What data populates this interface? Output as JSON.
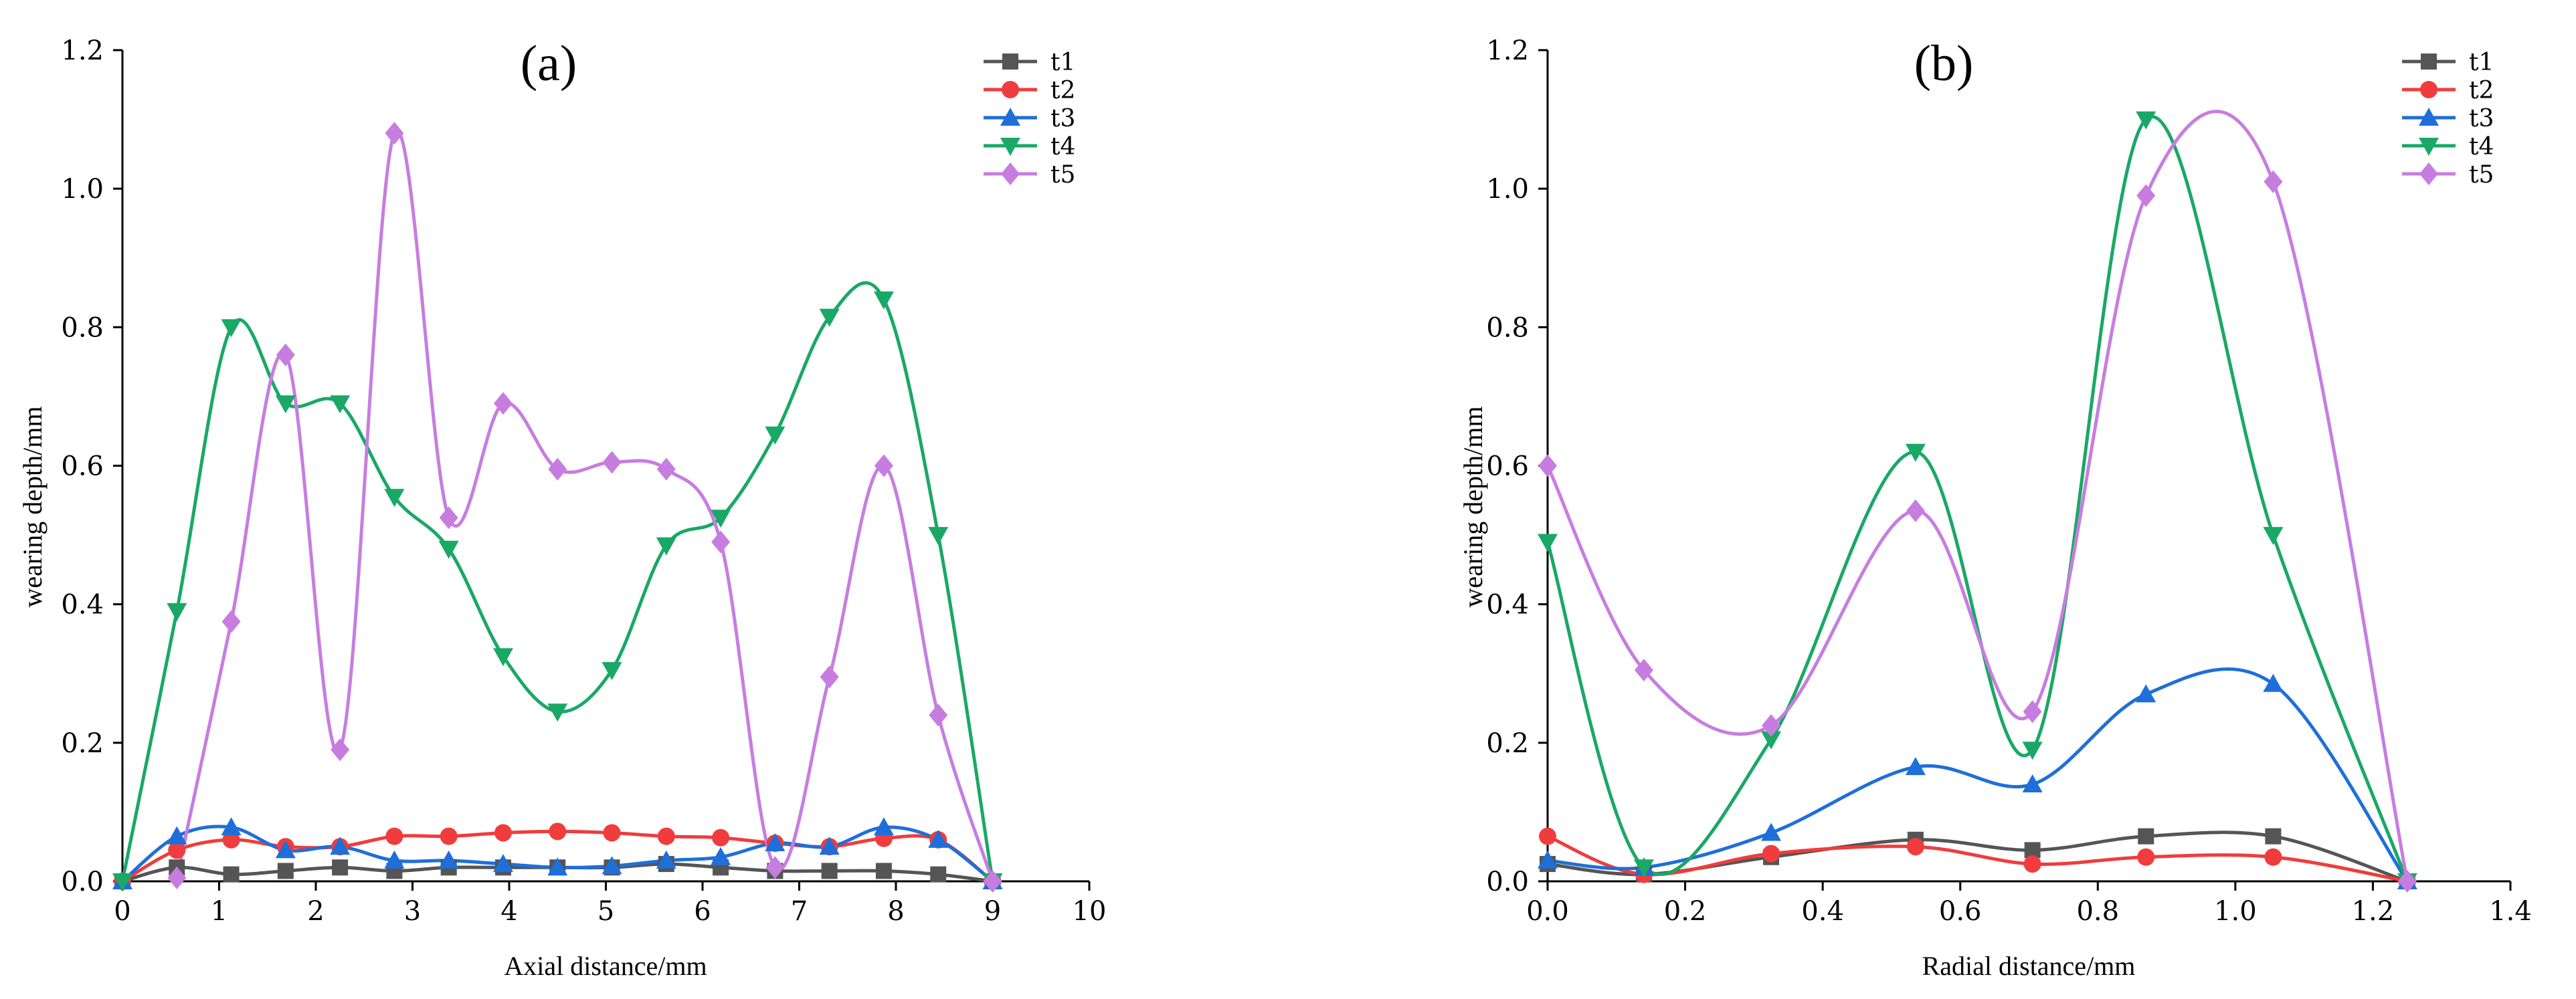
{
  "chart_data": [
    {
      "type": "line",
      "title": "(a)",
      "xlabel": "Axial distance/mm",
      "ylabel": "wearing depth/mm",
      "xlim": [
        0,
        10
      ],
      "ylim": [
        0,
        1.2
      ],
      "xticks": [
        "0",
        "1",
        "2",
        "3",
        "4",
        "5",
        "6",
        "7",
        "8",
        "9",
        "10"
      ],
      "yticks": [
        "0.0",
        "0.2",
        "0.4",
        "0.6",
        "0.8",
        "1.0",
        "1.2"
      ],
      "legend_position": "top-right",
      "series": [
        {
          "name": "t1",
          "color": "#555555",
          "marker": "square",
          "x": [
            0,
            0.5625,
            1.125,
            1.6875,
            2.25,
            2.8125,
            3.375,
            3.9375,
            4.5,
            5.0625,
            5.625,
            6.1875,
            6.75,
            7.3125,
            7.875,
            8.4375,
            9
          ],
          "y": [
            0.0,
            0.02,
            0.01,
            0.015,
            0.02,
            0.015,
            0.02,
            0.02,
            0.02,
            0.02,
            0.025,
            0.02,
            0.015,
            0.015,
            0.015,
            0.01,
            0.0
          ]
        },
        {
          "name": "t2",
          "color": "#f03c3c",
          "marker": "circle",
          "x": [
            0,
            0.5625,
            1.125,
            1.6875,
            2.25,
            2.8125,
            3.375,
            3.9375,
            4.5,
            5.0625,
            5.625,
            6.1875,
            6.75,
            7.3125,
            7.875,
            8.4375,
            9
          ],
          "y": [
            0.0,
            0.045,
            0.06,
            0.05,
            0.05,
            0.065,
            0.065,
            0.07,
            0.072,
            0.07,
            0.065,
            0.063,
            0.055,
            0.05,
            0.062,
            0.06,
            0.0
          ]
        },
        {
          "name": "t3",
          "color": "#1e6fd9",
          "marker": "triangle-up",
          "x": [
            0,
            0.5625,
            1.125,
            1.6875,
            2.25,
            2.8125,
            3.375,
            3.9375,
            4.5,
            5.0625,
            5.625,
            6.1875,
            6.75,
            7.3125,
            7.875,
            8.4375,
            9
          ],
          "y": [
            0.0,
            0.065,
            0.078,
            0.045,
            0.05,
            0.03,
            0.03,
            0.025,
            0.02,
            0.022,
            0.03,
            0.035,
            0.055,
            0.05,
            0.078,
            0.06,
            0.0
          ]
        },
        {
          "name": "t4",
          "color": "#1aa866",
          "marker": "triangle-down",
          "x": [
            0,
            0.5625,
            1.125,
            1.6875,
            2.25,
            2.8125,
            3.375,
            3.9375,
            4.5,
            5.0625,
            5.625,
            6.1875,
            6.75,
            7.3125,
            7.875,
            8.4375,
            9
          ],
          "y": [
            0.0,
            0.39,
            0.8,
            0.69,
            0.69,
            0.555,
            0.48,
            0.325,
            0.245,
            0.305,
            0.485,
            0.525,
            0.645,
            0.815,
            0.84,
            0.5,
            0.0
          ]
        },
        {
          "name": "t5",
          "color": "#c77de0",
          "marker": "diamond",
          "x": [
            0.5625,
            1.125,
            1.6875,
            2.25,
            2.8125,
            3.375,
            3.9375,
            4.5,
            5.0625,
            5.625,
            6.1875,
            6.75,
            7.3125,
            7.875,
            8.4375,
            9
          ],
          "y": [
            0.005,
            0.375,
            0.76,
            0.19,
            1.08,
            0.525,
            0.69,
            0.595,
            0.605,
            0.595,
            0.49,
            0.02,
            0.295,
            0.6,
            0.24,
            0.0
          ]
        }
      ]
    },
    {
      "type": "line",
      "title": "(b)",
      "xlabel": "Radial distance/mm",
      "ylabel": "wearing depth/mm",
      "xlim": [
        0,
        1.4
      ],
      "ylim": [
        0,
        1.2
      ],
      "xticks": [
        "0.0",
        "0.2",
        "0.4",
        "0.6",
        "0.8",
        "1.0",
        "1.2",
        "1.4"
      ],
      "yticks": [
        "0.0",
        "0.2",
        "0.4",
        "0.6",
        "0.8",
        "1.0",
        "1.2"
      ],
      "legend_position": "top-right",
      "series": [
        {
          "name": "t1",
          "color": "#555555",
          "marker": "square",
          "x": [
            0,
            0.14,
            0.325,
            0.535,
            0.705,
            0.87,
            1.055,
            1.25
          ],
          "y": [
            0.025,
            0.01,
            0.035,
            0.06,
            0.045,
            0.065,
            0.065,
            0.0
          ]
        },
        {
          "name": "t2",
          "color": "#f03c3c",
          "marker": "circle",
          "x": [
            0,
            0.14,
            0.325,
            0.535,
            0.705,
            0.87,
            1.055,
            1.25
          ],
          "y": [
            0.065,
            0.01,
            0.04,
            0.05,
            0.025,
            0.035,
            0.035,
            0.0
          ]
        },
        {
          "name": "t3",
          "color": "#1e6fd9",
          "marker": "triangle-up",
          "x": [
            0,
            0.14,
            0.325,
            0.535,
            0.705,
            0.87,
            1.055,
            1.25
          ],
          "y": [
            0.03,
            0.02,
            0.07,
            0.165,
            0.14,
            0.27,
            0.285,
            0.0
          ]
        },
        {
          "name": "t4",
          "color": "#1aa866",
          "marker": "triangle-down",
          "x": [
            0,
            0.14,
            0.325,
            0.535,
            0.705,
            0.87,
            1.055,
            1.25
          ],
          "y": [
            0.49,
            0.02,
            0.205,
            0.62,
            0.19,
            1.1,
            0.5,
            0.0
          ]
        },
        {
          "name": "t5",
          "color": "#c77de0",
          "marker": "diamond",
          "x": [
            0,
            0.14,
            0.325,
            0.535,
            0.705,
            0.87,
            1.055,
            1.25
          ],
          "y": [
            0.6,
            0.305,
            0.225,
            0.535,
            0.245,
            0.99,
            1.01,
            0.0
          ]
        }
      ]
    }
  ]
}
